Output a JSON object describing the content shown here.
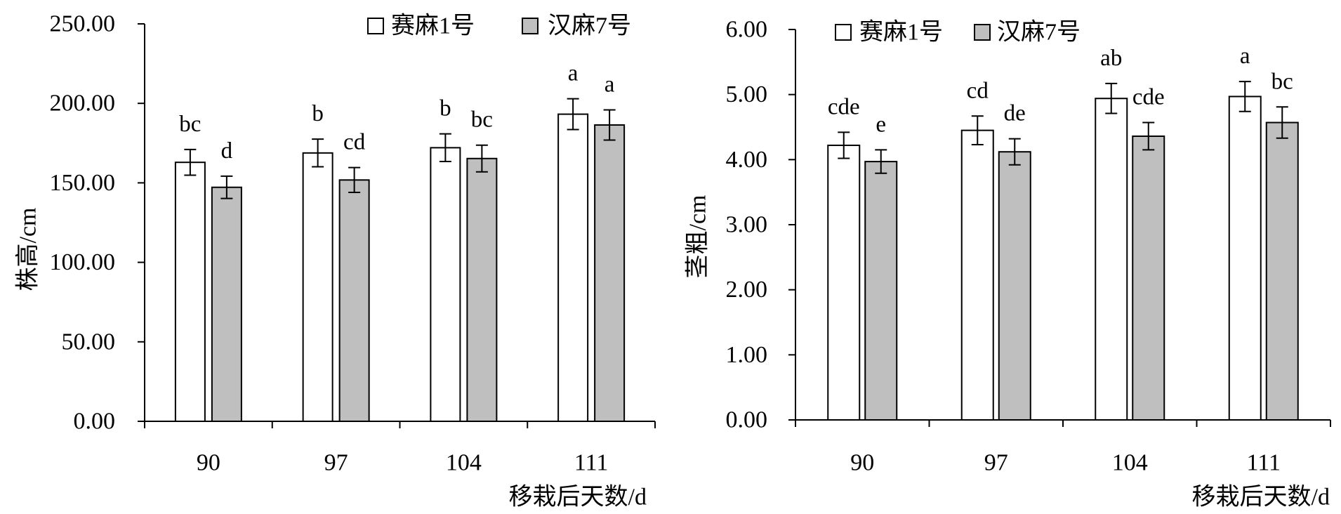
{
  "chart_data": [
    {
      "type": "bar",
      "categories": [
        "90",
        "97",
        "104",
        "111"
      ],
      "series": [
        {
          "name": "赛麻1号",
          "color": "#ffffff",
          "values": [
            162.9,
            168.8,
            172.1,
            193.2
          ],
          "errors": [
            8.1,
            8.7,
            8.7,
            9.7
          ],
          "letters": [
            "bc",
            "b",
            "b",
            "a"
          ]
        },
        {
          "name": "汉麻7号",
          "color": "#bfbfbf",
          "values": [
            147.2,
            151.8,
            165.3,
            186.4
          ],
          "errors": [
            7.0,
            7.8,
            8.4,
            9.5
          ],
          "letters": [
            "d",
            "cd",
            "bc",
            "a"
          ]
        }
      ],
      "xlabel": "移栽后天数/d",
      "ylabel": "株高/cm",
      "ylim": [
        0,
        250
      ],
      "yticks": [
        0,
        50,
        100,
        150,
        200,
        250
      ],
      "ytick_labels": [
        "0.00",
        "50.00",
        "100.00",
        "150.00",
        "200.00",
        "250.00"
      ],
      "grid": false,
      "legend": "top"
    },
    {
      "type": "bar",
      "categories": [
        "90",
        "97",
        "104",
        "111"
      ],
      "series": [
        {
          "name": "赛麻1号",
          "color": "#ffffff",
          "values": [
            4.22,
            4.45,
            4.94,
            4.97
          ],
          "errors": [
            0.2,
            0.22,
            0.23,
            0.23
          ],
          "letters": [
            "cde",
            "cd",
            "ab",
            "a"
          ]
        },
        {
          "name": "汉麻7号",
          "color": "#bfbfbf",
          "values": [
            3.97,
            4.12,
            4.36,
            4.57
          ],
          "errors": [
            0.18,
            0.2,
            0.21,
            0.24
          ],
          "letters": [
            "e",
            "de",
            "cde",
            "bc"
          ]
        }
      ],
      "xlabel": "移栽后天数/d",
      "ylabel": "茎粗/cm",
      "ylim": [
        0,
        6
      ],
      "yticks": [
        0,
        1,
        2,
        3,
        4,
        5,
        6
      ],
      "ytick_labels": [
        "0.00",
        "1.00",
        "2.00",
        "3.00",
        "4.00",
        "5.00",
        "6.00"
      ],
      "grid": false,
      "legend": "top"
    }
  ]
}
